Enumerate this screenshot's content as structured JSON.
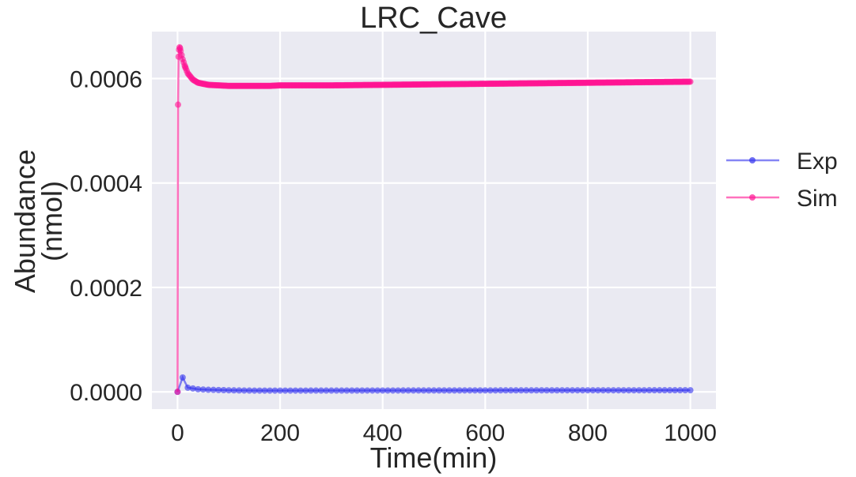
{
  "chart_data": {
    "type": "line",
    "title": "LRC_Cave",
    "xlabel": "Time(min)",
    "ylabel_lines": [
      "Abundance",
      "(nmol)"
    ],
    "xlim": [
      -50,
      1050
    ],
    "ylim": [
      -3.3e-05,
      0.00069
    ],
    "xticks": [
      0,
      200,
      400,
      600,
      800,
      1000
    ],
    "xtick_labels": [
      "0",
      "200",
      "400",
      "600",
      "800",
      "1000"
    ],
    "yticks": [
      0.0,
      0.0002,
      0.0004,
      0.0006
    ],
    "ytick_labels": [
      "0.0000",
      "0.0002",
      "0.0004",
      "0.0006"
    ],
    "grid": true,
    "legend_position": "right, outside plot",
    "background": "#eaeaf2",
    "series": [
      {
        "name": "Exp",
        "color": "#3333ee",
        "marker": "circle",
        "x": [
          0,
          10,
          20,
          30,
          40,
          50,
          60,
          70,
          80,
          90,
          100,
          120,
          140,
          160,
          200,
          300,
          400,
          500,
          600,
          700,
          800,
          900,
          1000
        ],
        "y": [
          0.0,
          2.75e-05,
          8e-06,
          6.5e-06,
          5e-06,
          4.5e-06,
          4e-06,
          3.8e-06,
          3.5e-06,
          3.3e-06,
          3e-06,
          2.7e-06,
          2.5e-06,
          2.4e-06,
          2.4e-06,
          2.5e-06,
          2.6e-06,
          2.7e-06,
          2.8e-06,
          2.9e-06,
          3e-06,
          3e-06,
          3.1e-06
        ],
        "marker_step": 10
      },
      {
        "name": "Sim",
        "color": "#ff1493",
        "marker": "circle",
        "x": [
          0,
          1,
          2,
          3,
          4,
          5,
          6,
          8,
          10,
          15,
          20,
          30,
          40,
          50,
          60,
          80,
          100,
          120,
          150,
          180,
          200,
          300,
          400,
          500,
          600,
          700,
          800,
          900,
          1000
        ],
        "y": [
          0.0,
          0.00055,
          0.000642,
          0.000655,
          0.00066,
          0.000658,
          0.000653,
          0.000645,
          0.000637,
          0.000622,
          0.00061,
          0.000598,
          0.000592,
          0.00059,
          0.000588,
          0.000587,
          0.000586,
          0.000586,
          0.000586,
          0.000586,
          0.000587,
          0.000587,
          0.000588,
          0.000589,
          0.00059,
          0.000591,
          0.000592,
          0.000593,
          0.000594
        ],
        "marker_step": 2
      }
    ]
  }
}
